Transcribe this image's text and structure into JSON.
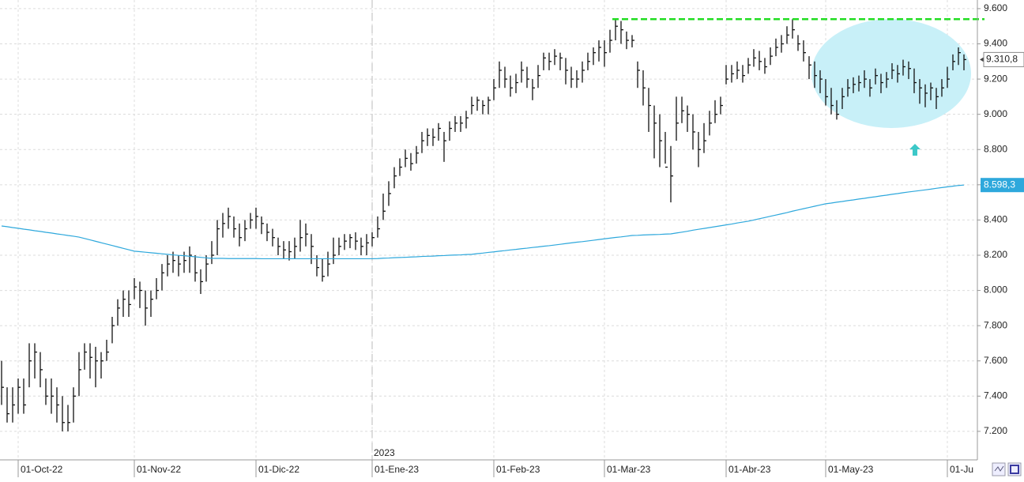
{
  "chart_data": {
    "type": "ohlc",
    "categories": [
      null,
      null,
      null,
      "01-Oct-22",
      null,
      null,
      null,
      null,
      null,
      null,
      null,
      null,
      null,
      null,
      null,
      null,
      null,
      null,
      null,
      null,
      null,
      null,
      null,
      null,
      "01-Nov-22",
      null,
      null,
      null,
      null,
      null,
      null,
      null,
      null,
      null,
      null,
      null,
      null,
      null,
      null,
      null,
      null,
      null,
      null,
      null,
      null,
      null,
      "01-Dic-22",
      null,
      null,
      null,
      null,
      null,
      null,
      null,
      null,
      null,
      null,
      null,
      null,
      null,
      null,
      null,
      null,
      null,
      null,
      null,
      null,
      "01-Ene-23",
      null,
      null,
      null,
      null,
      null,
      null,
      null,
      null,
      null,
      null,
      null,
      null,
      null,
      null,
      null,
      null,
      null,
      null,
      null,
      null,
      null,
      "01-Feb-23",
      null,
      null,
      null,
      null,
      null,
      null,
      null,
      null,
      null,
      null,
      null,
      null,
      null,
      null,
      null,
      null,
      null,
      null,
      null,
      "01-Mar-23",
      null,
      null,
      null,
      null,
      null,
      null,
      null,
      null,
      null,
      null,
      null,
      null,
      null,
      null,
      null,
      null,
      null,
      null,
      null,
      null,
      null,
      "01-Abr-23",
      null,
      null,
      null,
      null,
      null,
      null,
      null,
      null,
      null,
      null,
      null,
      null,
      null,
      null,
      null,
      null,
      null,
      "01-May-23",
      null,
      null,
      null,
      null,
      null,
      null,
      null,
      null,
      null,
      null,
      null,
      null,
      null,
      null,
      null,
      null,
      null,
      null,
      null,
      null,
      null,
      "01-Ju",
      null,
      null,
      null
    ],
    "high": [
      7600,
      7450,
      7450,
      7500,
      7500,
      7700,
      7700,
      7650,
      7500,
      7500,
      7450,
      7400,
      7350,
      7450,
      7650,
      7700,
      7700,
      7680,
      7650,
      7720,
      7850,
      7950,
      8000,
      8000,
      8070,
      8050,
      8000,
      8000,
      8070,
      8150,
      8200,
      8220,
      8200,
      8220,
      8250,
      8200,
      8120,
      8200,
      8280,
      8400,
      8440,
      8470,
      8420,
      8380,
      8400,
      8440,
      8470,
      8420,
      8380,
      8350,
      8300,
      8280,
      8280,
      8300,
      8400,
      8380,
      8320,
      8200,
      8180,
      8220,
      8300,
      8300,
      8320,
      8320,
      8330,
      8300,
      8320,
      8330,
      8420,
      8550,
      8620,
      8700,
      8750,
      8800,
      8780,
      8820,
      8900,
      8920,
      8920,
      8950,
      8900,
      8960,
      8990,
      8990,
      9020,
      9100,
      9100,
      9080,
      9100,
      9200,
      9300,
      9270,
      9220,
      9230,
      9300,
      9270,
      9200,
      9280,
      9350,
      9350,
      9370,
      9350,
      9320,
      9270,
      9250,
      9300,
      9350,
      9380,
      9420,
      9420,
      9480,
      9540,
      9530,
      9470,
      9450,
      9300,
      9250,
      9150,
      9050,
      9000,
      8900,
      8820,
      9100,
      9100,
      9050,
      9000,
      8900,
      8950,
      9020,
      9080,
      9100,
      9280,
      9280,
      9300,
      9280,
      9320,
      9370,
      9360,
      9320,
      9380,
      9430,
      9450,
      9500,
      9540,
      9450,
      9420,
      9330,
      9300,
      9250,
      9200,
      9150,
      9080,
      9150,
      9200,
      9210,
      9220,
      9250,
      9200,
      9260,
      9230,
      9240,
      9290,
      9280,
      9310,
      9300,
      9260,
      9200,
      9170,
      9180,
      9150,
      9200,
      9270,
      9340,
      9380,
      9340
    ],
    "low": [
      7350,
      7250,
      7250,
      7300,
      7300,
      7450,
      7500,
      7450,
      7350,
      7300,
      7250,
      7200,
      7200,
      7250,
      7400,
      7550,
      7500,
      7450,
      7500,
      7600,
      7700,
      7800,
      7850,
      7850,
      7950,
      7900,
      7800,
      7850,
      7950,
      8000,
      8080,
      8100,
      8080,
      8100,
      8100,
      8050,
      7980,
      8050,
      8150,
      8200,
      8300,
      8350,
      8300,
      8250,
      8280,
      8350,
      8350,
      8320,
      8280,
      8250,
      8200,
      8180,
      8170,
      8180,
      8220,
      8250,
      8150,
      8080,
      8050,
      8080,
      8150,
      8200,
      8230,
      8240,
      8230,
      8200,
      8200,
      8250,
      8300,
      8400,
      8480,
      8580,
      8650,
      8700,
      8680,
      8720,
      8780,
      8820,
      8820,
      8850,
      8730,
      8850,
      8900,
      8900,
      8920,
      9000,
      9020,
      9000,
      9000,
      9080,
      9150,
      9150,
      9100,
      9120,
      9180,
      9150,
      9080,
      9150,
      9250,
      9250,
      9280,
      9250,
      9170,
      9150,
      9150,
      9180,
      9250,
      9280,
      9300,
      9270,
      9350,
      9420,
      9400,
      9370,
      9380,
      9150,
      9050,
      8900,
      8750,
      8700,
      8720,
      8500,
      8850,
      8950,
      8900,
      8800,
      8700,
      8780,
      8880,
      8950,
      9000,
      9170,
      9180,
      9200,
      9180,
      9230,
      9270,
      9250,
      9230,
      9280,
      9330,
      9350,
      9400,
      9430,
      9360,
      9300,
      9200,
      9150,
      9120,
      9050,
      9000,
      8970,
      9030,
      9100,
      9120,
      9130,
      9150,
      9100,
      9170,
      9120,
      9150,
      9200,
      9180,
      9220,
      9200,
      9120,
      9060,
      9040,
      9080,
      9030,
      9100,
      9150,
      9250,
      9280,
      9250
    ],
    "close": [
      7450,
      7300,
      7350,
      7450,
      7350,
      7600,
      7650,
      7550,
      7400,
      7400,
      7350,
      7250,
      7250,
      7400,
      7550,
      7650,
      7620,
      7600,
      7600,
      7650,
      7800,
      7900,
      7950,
      7920,
      8020,
      8000,
      7900,
      7950,
      8000,
      8100,
      8150,
      8170,
      8150,
      8170,
      8200,
      8100,
      8050,
      8150,
      8200,
      8350,
      8380,
      8420,
      8350,
      8300,
      8350,
      8400,
      8420,
      8380,
      8330,
      8300,
      8250,
      8230,
      8220,
      8250,
      8300,
      8320,
      8250,
      8130,
      8080,
      8150,
      8200,
      8250,
      8280,
      8300,
      8280,
      8250,
      8270,
      8300,
      8350,
      8450,
      8550,
      8650,
      8700,
      8750,
      8720,
      8780,
      8850,
      8880,
      8870,
      8920,
      8850,
      8920,
      8950,
      8950,
      8980,
      9050,
      9080,
      9050,
      9080,
      9150,
      9250,
      9200,
      9150,
      9180,
      9250,
      9200,
      9150,
      9220,
      9320,
      9300,
      9330,
      9320,
      9250,
      9200,
      9200,
      9250,
      9300,
      9350,
      9380,
      9350,
      9420,
      9500,
      9480,
      9420,
      9420,
      9250,
      9150,
      9050,
      8950,
      8850,
      8700,
      8650,
      8950,
      9020,
      9000,
      8900,
      8800,
      8850,
      8950,
      9000,
      9050,
      9200,
      9230,
      9250,
      9220,
      9280,
      9320,
      9300,
      9270,
      9330,
      9380,
      9400,
      9450,
      9480,
      9400,
      9350,
      9280,
      9220,
      9200,
      9100,
      9050,
      9000,
      9100,
      9150,
      9170,
      9180,
      9200,
      9150,
      9220,
      9180,
      9200,
      9250,
      9230,
      9270,
      9260,
      9180,
      9150,
      9120,
      9150,
      9100,
      9150,
      9200,
      9300,
      9350,
      9310.8
    ],
    "close_label": "9.310,8",
    "color": "#111111",
    "moving_average": {
      "color": "#2ea8dc",
      "values": [
        8366,
        8362,
        8357,
        8353,
        8348,
        8344,
        8339,
        8335,
        8330,
        8326,
        8321,
        8317,
        8312,
        8308,
        8303,
        8295,
        8287,
        8279,
        8271,
        8263,
        8255,
        8247,
        8239,
        8231,
        8223,
        8220,
        8217,
        8214,
        8211,
        8208,
        8205,
        8202,
        8199,
        8197,
        8194,
        8191,
        8188,
        8185,
        8182,
        8182,
        8182,
        8181,
        8181,
        8181,
        8181,
        8181,
        8181,
        8180,
        8180,
        8180,
        8180,
        8180,
        8180,
        8180,
        8180,
        8180,
        8180,
        8180,
        8180,
        8180,
        8180,
        8180,
        8180,
        8180,
        8180,
        8180,
        8180,
        8180,
        8181,
        8183,
        8184,
        8186,
        8187,
        8188,
        8190,
        8191,
        8193,
        8194,
        8195,
        8197,
        8198,
        8200,
        8201,
        8202,
        8204,
        8205,
        8209,
        8212,
        8216,
        8219,
        8223,
        8226,
        8230,
        8233,
        8237,
        8240,
        8244,
        8247,
        8251,
        8254,
        8258,
        8262,
        8266,
        8270,
        8274,
        8277,
        8281,
        8285,
        8289,
        8293,
        8297,
        8301,
        8304,
        8308,
        8312,
        8313,
        8315,
        8316,
        8317,
        8318,
        8320,
        8321,
        8326,
        8331,
        8336,
        8342,
        8347,
        8352,
        8357,
        8362,
        8367,
        8372,
        8377,
        8383,
        8388,
        8393,
        8400,
        8407,
        8414,
        8421,
        8428,
        8435,
        8442,
        8450,
        8457,
        8464,
        8471,
        8478,
        8485,
        8492,
        8496,
        8501,
        8505,
        8510,
        8514,
        8519,
        8523,
        8528,
        8532,
        8537,
        8541,
        8546,
        8550,
        8555,
        8559,
        8563,
        8567,
        8571,
        8575,
        8580,
        8584,
        8588,
        8592,
        8596,
        8598.3
      ],
      "value_label": "8.598,3"
    },
    "resistance": {
      "value": 9540,
      "color": "#22dd22"
    },
    "year_label": "2023",
    "ylim": [
      7038,
      9649
    ],
    "yticks": [
      {
        "value": 7200,
        "label": "7.200"
      },
      {
        "value": 7400,
        "label": "7.400"
      },
      {
        "value": 7600,
        "label": "7.600"
      },
      {
        "value": 7800,
        "label": "7.800"
      },
      {
        "value": 8000,
        "label": "8.000"
      },
      {
        "value": 8200,
        "label": "8.200"
      },
      {
        "value": 8400,
        "label": "8.400"
      },
      {
        "value": 8600,
        "label": "8.600"
      },
      {
        "value": 8800,
        "label": "8.800"
      },
      {
        "value": 9000,
        "label": "9.000"
      },
      {
        "value": 9200,
        "label": "9.200"
      },
      {
        "value": 9400,
        "label": "9.400"
      },
      {
        "value": 9600,
        "label": "9.600"
      }
    ],
    "grid": true
  }
}
